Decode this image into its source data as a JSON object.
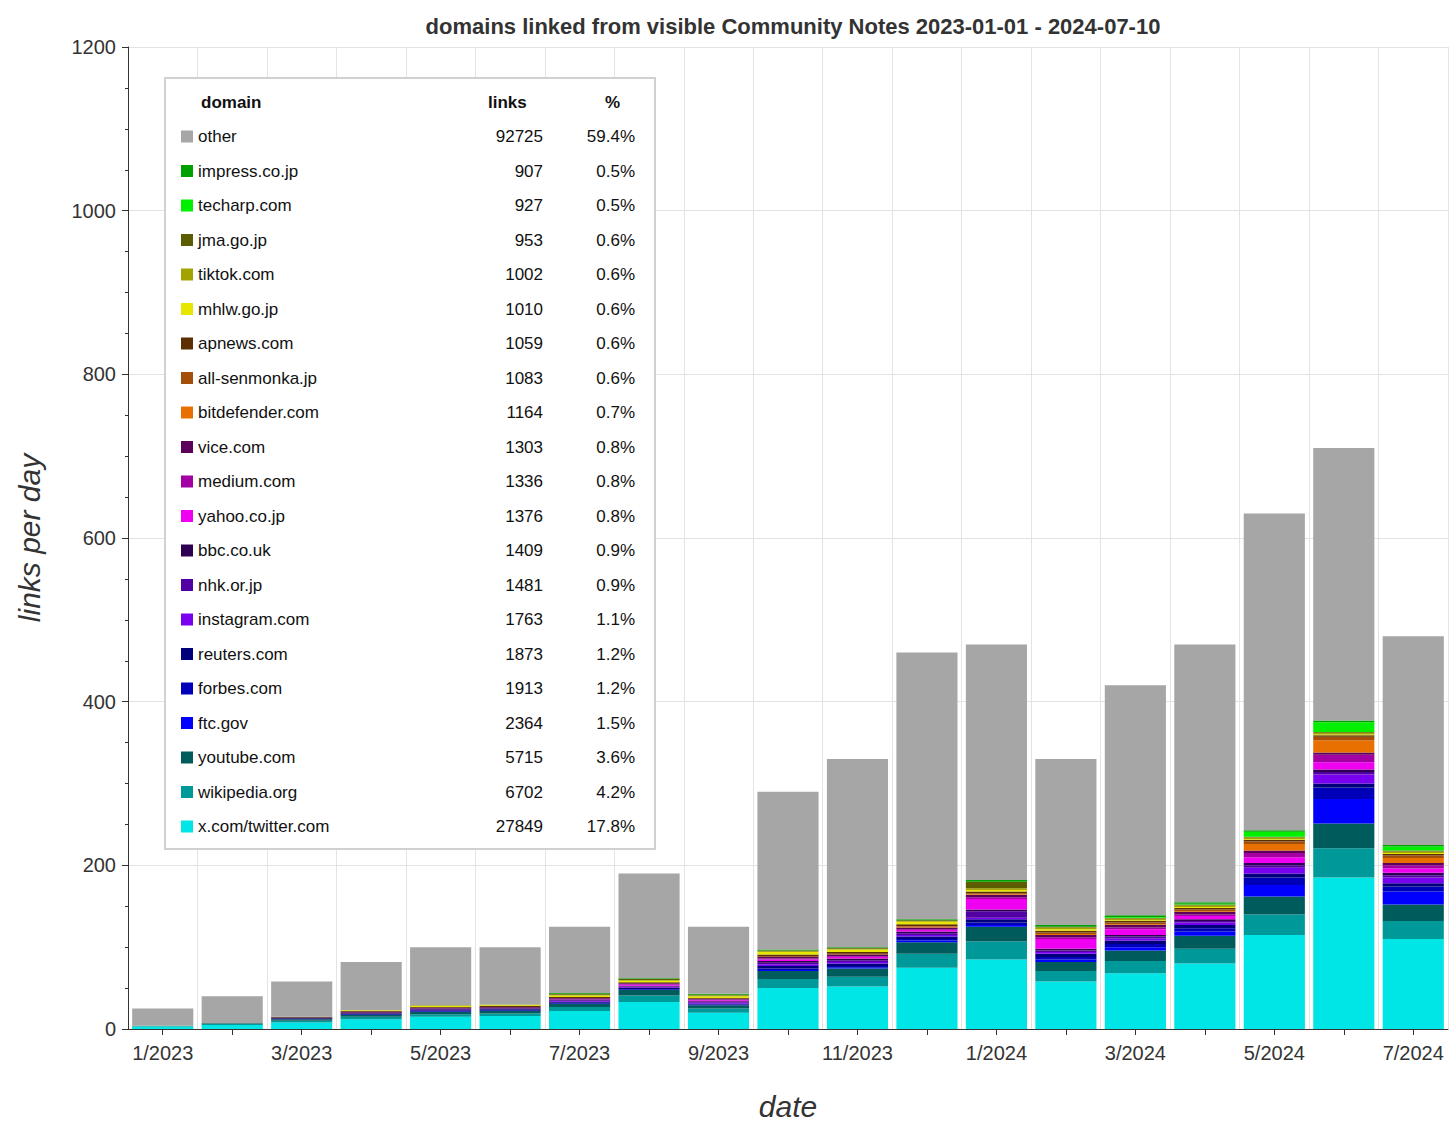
{
  "chart_data": {
    "type": "bar",
    "title": "domains linked from visible Community Notes 2023-01-01 - 2024-07-10",
    "x_label": "date",
    "y_label": "links per day",
    "categories": [
      "1/2023",
      null,
      "3/2023",
      null,
      "5/2023",
      null,
      "7/2023",
      null,
      "9/2023",
      null,
      "11/2023",
      null,
      "1/2024",
      null,
      "3/2024",
      null,
      "5/2024",
      null,
      "7/2024"
    ],
    "ylim": [
      0,
      1200
    ],
    "yticks": [
      0,
      200,
      400,
      600,
      800,
      1000,
      1200
    ],
    "grid": true,
    "stacked": true,
    "legend": "upper left",
    "legend_columns": [
      "domain",
      "links",
      "%"
    ],
    "series": [
      {
        "name": "other",
        "color": "#a6a6a6",
        "links": 92725,
        "percent": {
          "value": 59.4,
          "label": "59.4%"
        },
        "values": [
          21,
          33,
          43,
          59,
          71,
          70,
          81,
          128,
          82,
          193,
          230,
          326,
          288,
          203,
          281,
          315,
          387,
          333,
          255
        ]
      },
      {
        "name": "impress.co.jp",
        "color": "#00a000",
        "links": 907,
        "percent": {
          "value": 0.5,
          "label": "0.5%"
        },
        "values": [
          0,
          0,
          0,
          0,
          0,
          0,
          1,
          1,
          1,
          1,
          1,
          1,
          2,
          2,
          2,
          2,
          2,
          2,
          2
        ]
      },
      {
        "name": "techarp.com",
        "color": "#00f000",
        "links": 927,
        "percent": {
          "value": 0.5,
          "label": "0.5%"
        },
        "values": [
          0,
          0,
          0,
          0,
          0,
          0,
          0,
          0,
          0,
          0,
          0,
          0,
          0,
          0,
          1,
          1,
          6,
          12,
          5
        ]
      },
      {
        "name": "jma.go.jp",
        "color": "#5c5c00",
        "links": 953,
        "percent": {
          "value": 0.6,
          "label": "0.6%"
        },
        "values": [
          0,
          0,
          0,
          0,
          0,
          0,
          1,
          1,
          1,
          1,
          1,
          1,
          8,
          1,
          1,
          1,
          1,
          1,
          1
        ]
      },
      {
        "name": "tiktok.com",
        "color": "#a3a300",
        "links": 1002,
        "percent": {
          "value": 0.6,
          "label": "0.6%"
        },
        "values": [
          0,
          0,
          0,
          0,
          1,
          1,
          1,
          1,
          1,
          1,
          1,
          1,
          2,
          2,
          2,
          2,
          2,
          2,
          2
        ]
      },
      {
        "name": "mhlw.go.jp",
        "color": "#e6e600",
        "links": 1010,
        "percent": {
          "value": 0.6,
          "label": "0.6%"
        },
        "values": [
          0,
          0,
          0,
          1,
          1,
          1,
          2,
          2,
          2,
          3,
          3,
          3,
          2,
          2,
          1,
          1,
          1,
          1,
          1
        ]
      },
      {
        "name": "apnews.com",
        "color": "#5c2e00",
        "links": 1059,
        "percent": {
          "value": 0.6,
          "label": "0.6%"
        },
        "values": [
          0,
          0,
          1,
          1,
          1,
          1,
          1,
          1,
          1,
          2,
          2,
          2,
          2,
          2,
          2,
          2,
          2,
          2,
          2
        ]
      },
      {
        "name": "all-senmonka.jp",
        "color": "#a34f0a",
        "links": 1083,
        "percent": {
          "value": 0.6,
          "label": "0.6%"
        },
        "values": [
          0,
          0,
          0,
          0,
          0,
          0,
          0,
          0,
          0,
          1,
          1,
          1,
          1,
          2,
          2,
          2,
          3,
          4,
          3
        ]
      },
      {
        "name": "bitdefender.com",
        "color": "#e87000",
        "links": 1164,
        "percent": {
          "value": 0.7,
          "label": "0.7%"
        },
        "values": [
          0,
          0,
          0,
          0,
          0,
          0,
          0,
          0,
          0,
          0,
          0,
          1,
          1,
          1,
          1,
          1,
          8,
          15,
          6
        ]
      },
      {
        "name": "vice.com",
        "color": "#5c005c",
        "links": 1303,
        "percent": {
          "value": 0.8,
          "label": "0.8%"
        },
        "values": [
          0,
          0,
          0,
          1,
          1,
          1,
          1,
          1,
          1,
          2,
          2,
          2,
          3,
          3,
          3,
          3,
          3,
          3,
          3
        ]
      },
      {
        "name": "medium.com",
        "color": "#a300a3",
        "links": 1336,
        "percent": {
          "value": 0.8,
          "label": "0.8%"
        },
        "values": [
          0,
          0,
          0,
          0,
          0,
          0,
          1,
          1,
          1,
          1,
          1,
          1,
          2,
          2,
          2,
          2,
          5,
          9,
          4
        ]
      },
      {
        "name": "yahoo.co.jp",
        "color": "#f000f0",
        "links": 1376,
        "percent": {
          "value": 0.8,
          "label": "0.8%"
        },
        "values": [
          0,
          0,
          0,
          0,
          0,
          0,
          0,
          1,
          1,
          2,
          2,
          2,
          13,
          12,
          7,
          4,
          7,
          9,
          5
        ]
      },
      {
        "name": "bbc.co.uk",
        "color": "#2e0052",
        "links": 1409,
        "percent": {
          "value": 0.9,
          "label": "0.9%"
        },
        "values": [
          0,
          0,
          1,
          1,
          1,
          1,
          1,
          1,
          1,
          2,
          2,
          2,
          2,
          2,
          2,
          2,
          3,
          3,
          3
        ]
      },
      {
        "name": "nhk.or.jp",
        "color": "#5200a3",
        "links": 1481,
        "percent": {
          "value": 0.9,
          "label": "0.9%"
        },
        "values": [
          0,
          0,
          0,
          0,
          1,
          1,
          1,
          1,
          1,
          2,
          2,
          2,
          8,
          2,
          2,
          2,
          3,
          3,
          3
        ]
      },
      {
        "name": "instagram.com",
        "color": "#7a00f0",
        "links": 1763,
        "percent": {
          "value": 1.1,
          "label": "1.1%"
        },
        "values": [
          0,
          0,
          0,
          0,
          0,
          0,
          1,
          1,
          1,
          2,
          2,
          2,
          2,
          2,
          3,
          3,
          7,
          11,
          7
        ]
      },
      {
        "name": "reuters.com",
        "color": "#00007a",
        "links": 1873,
        "percent": {
          "value": 1.2,
          "label": "1.2%"
        },
        "values": [
          0,
          0,
          1,
          1,
          1,
          1,
          1,
          1,
          1,
          3,
          3,
          3,
          4,
          4,
          4,
          4,
          5,
          5,
          4
        ]
      },
      {
        "name": "forbes.com",
        "color": "#0000b8",
        "links": 1913,
        "percent": {
          "value": 1.2,
          "label": "1.2%"
        },
        "values": [
          0,
          0,
          0,
          1,
          1,
          1,
          1,
          1,
          1,
          2,
          2,
          2,
          3,
          3,
          4,
          4,
          9,
          14,
          6
        ]
      },
      {
        "name": "ftc.gov",
        "color": "#0000ff",
        "links": 2364,
        "percent": {
          "value": 1.5,
          "label": "1.5%"
        },
        "values": [
          0,
          0,
          0,
          0,
          0,
          0,
          0,
          0,
          0,
          1,
          1,
          2,
          2,
          3,
          4,
          5,
          14,
          30,
          16
        ]
      },
      {
        "name": "youtube.com",
        "color": "#005c5c",
        "links": 5715,
        "percent": {
          "value": 3.6,
          "label": "3.6%"
        },
        "values": [
          0,
          1,
          2,
          2,
          3,
          3,
          4,
          7,
          4,
          10,
          10,
          14,
          18,
          11,
          13,
          16,
          22,
          30,
          20
        ]
      },
      {
        "name": "wikipedia.org",
        "color": "#009999",
        "links": 6702,
        "percent": {
          "value": 4.2,
          "label": "4.2%"
        },
        "values": [
          1,
          1,
          2,
          3,
          3,
          3,
          5,
          8,
          5,
          11,
          12,
          17,
          22,
          13,
          15,
          18,
          25,
          36,
          22
        ]
      },
      {
        "name": "x.com/twitter.com",
        "color": "#00e5e5",
        "links": 27849,
        "percent": {
          "value": 17.8,
          "label": "17.8%"
        },
        "values": [
          3,
          5,
          8,
          12,
          15,
          16,
          22,
          33,
          20,
          50,
          52,
          75,
          85,
          58,
          68,
          80,
          115,
          185,
          110
        ]
      }
    ]
  }
}
